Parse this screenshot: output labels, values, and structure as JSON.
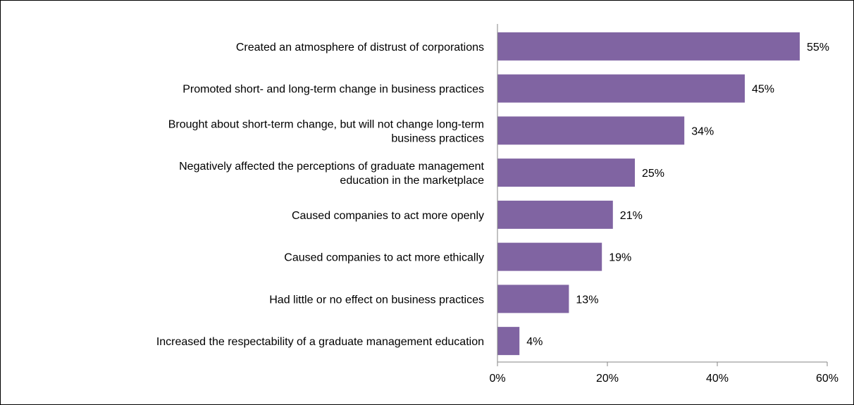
{
  "chart_data": {
    "type": "bar",
    "orientation": "horizontal",
    "categories": [
      [
        "Created an atmosphere of distrust of corporations"
      ],
      [
        "Promoted short- and long-term change in business practices"
      ],
      [
        "Brought about short-term change, but will not change long-term",
        "business practices"
      ],
      [
        "Negatively affected the perceptions of graduate management",
        "education in the marketplace"
      ],
      [
        "Caused companies to act more openly"
      ],
      [
        "Caused companies to act more ethically"
      ],
      [
        "Had little or no effect on business practices"
      ],
      [
        "Increased the respectability of a graduate management education"
      ]
    ],
    "values": [
      55,
      45,
      34,
      25,
      21,
      19,
      13,
      4
    ],
    "data_labels": [
      "55%",
      "45%",
      "34%",
      "25%",
      "21%",
      "19%",
      "13%",
      "4%"
    ],
    "x_ticks": [
      "0%",
      "20%",
      "40%",
      "60%"
    ],
    "xlim": [
      0,
      60
    ],
    "bar_color": "#8064A2",
    "grid": false,
    "legend": "none"
  }
}
